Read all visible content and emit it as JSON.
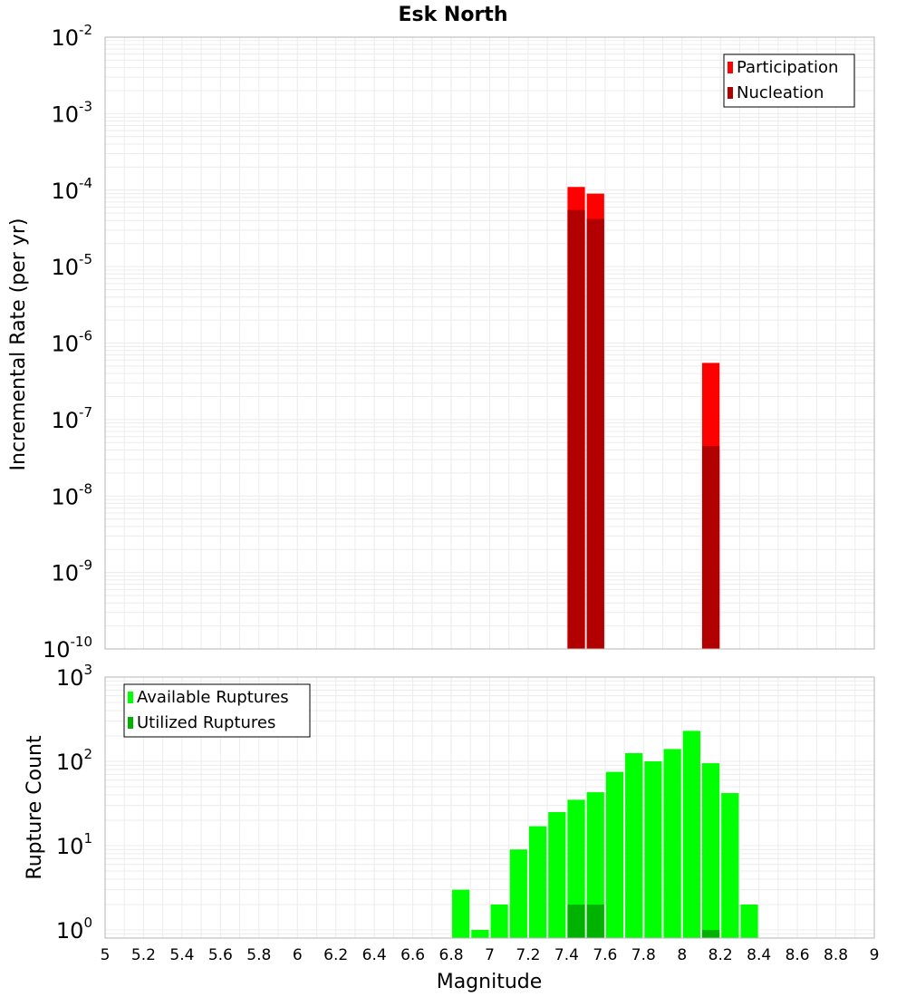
{
  "chart_data": [
    {
      "type": "bar",
      "title": "Esk North",
      "xlabel": "",
      "ylabel": "Incremental Rate (per yr)",
      "xlim": [
        5,
        9
      ],
      "ylim": [
        1e-10,
        0.01
      ],
      "y_scale": "log",
      "bin_width": 0.1,
      "grid": true,
      "legend_position": "top-right",
      "series": [
        {
          "name": "Participation",
          "color": "#ff0000",
          "points": [
            {
              "x": 7.45,
              "y": 0.00011
            },
            {
              "x": 7.55,
              "y": 9e-05
            },
            {
              "x": 8.15,
              "y": 5.5e-07
            }
          ]
        },
        {
          "name": "Nucleation",
          "color": "#b20000",
          "points": [
            {
              "x": 7.45,
              "y": 5.5e-05
            },
            {
              "x": 7.55,
              "y": 4.2e-05
            },
            {
              "x": 8.15,
              "y": 4.5e-08
            }
          ]
        }
      ]
    },
    {
      "type": "bar",
      "title": "",
      "xlabel": "Magnitude",
      "ylabel": "Rupture Count",
      "xlim": [
        5,
        9
      ],
      "ylim": [
        0.8,
        1000
      ],
      "y_scale": "log",
      "bin_width": 0.1,
      "grid": true,
      "legend_position": "top-left",
      "series": [
        {
          "name": "Available Ruptures",
          "color": "#00ff00",
          "points": [
            {
              "x": 6.85,
              "y": 3
            },
            {
              "x": 6.95,
              "y": 1
            },
            {
              "x": 7.05,
              "y": 2
            },
            {
              "x": 7.15,
              "y": 9
            },
            {
              "x": 7.25,
              "y": 17
            },
            {
              "x": 7.35,
              "y": 25
            },
            {
              "x": 7.45,
              "y": 35
            },
            {
              "x": 7.55,
              "y": 43
            },
            {
              "x": 7.65,
              "y": 75
            },
            {
              "x": 7.75,
              "y": 125
            },
            {
              "x": 7.85,
              "y": 100
            },
            {
              "x": 7.95,
              "y": 140
            },
            {
              "x": 8.05,
              "y": 230
            },
            {
              "x": 8.15,
              "y": 95
            },
            {
              "x": 8.25,
              "y": 42
            },
            {
              "x": 8.35,
              "y": 2
            }
          ]
        },
        {
          "name": "Utilized Ruptures",
          "color": "#00b200",
          "points": [
            {
              "x": 7.45,
              "y": 2
            },
            {
              "x": 7.55,
              "y": 2
            },
            {
              "x": 8.15,
              "y": 1
            }
          ]
        }
      ],
      "x_ticks": [
        "5",
        "5.2",
        "5.4",
        "5.6",
        "5.8",
        "6",
        "6.2",
        "6.4",
        "6.6",
        "6.8",
        "7",
        "7.2",
        "7.4",
        "7.6",
        "7.8",
        "8",
        "8.2",
        "8.4",
        "8.6",
        "8.8",
        "9"
      ]
    }
  ],
  "colors": {
    "participation": "#ff0000",
    "nucleation": "#b20000",
    "available": "#00ff00",
    "utilized": "#00b200",
    "grid": "#ececec",
    "frame": "#b4b4b4"
  }
}
